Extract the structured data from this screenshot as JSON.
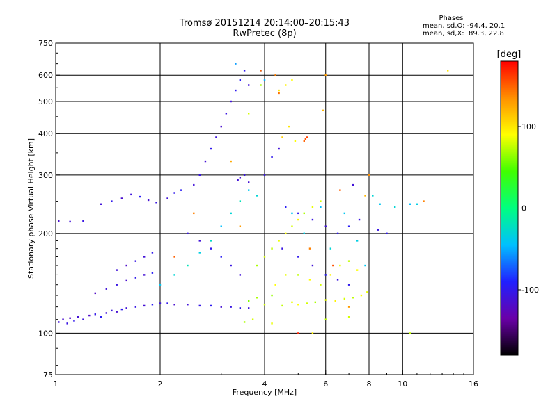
{
  "header": {
    "title": "Tromsø 20151214 20:14:00–20:15:43",
    "subtitle": "RwPretec (8p)"
  },
  "stats": {
    "heading": "Phases",
    "line_o": "mean, sd,O: -94.4, 20.1",
    "line_x": "mean, sd,X:  89.3, 22.8"
  },
  "colorbar": {
    "label": "[deg]",
    "ticks": [
      {
        "value": 100,
        "label": "100"
      },
      {
        "value": 0,
        "label": "0"
      },
      {
        "value": -100,
        "label": "-100"
      }
    ],
    "min": -180,
    "max": 180,
    "stops": [
      "#000000",
      "#6a00a8",
      "#2020ff",
      "#00c0ff",
      "#00ff80",
      "#40ff00",
      "#ffff00",
      "#ff9000",
      "#ff0000"
    ]
  },
  "chart_data": {
    "type": "scatter",
    "xlabel": "Frequency [MHz]",
    "ylabel": "Stationary phase Virtual Height [km]",
    "xscale": "log",
    "yscale": "log",
    "xlim": [
      1,
      16
    ],
    "ylim": [
      75,
      750
    ],
    "xticks": [
      {
        "value": 1,
        "label": "1",
        "grid": false
      },
      {
        "value": 2,
        "label": "2",
        "grid": true
      },
      {
        "value": 4,
        "label": "4",
        "grid": true
      },
      {
        "value": 6,
        "label": "6",
        "grid": true
      },
      {
        "value": 8,
        "label": "8",
        "grid": true
      },
      {
        "value": 10,
        "label": "10",
        "grid": true
      },
      {
        "value": 16,
        "label": "16",
        "grid": false
      }
    ],
    "yticks": [
      {
        "value": 75,
        "label": "75",
        "grid": false
      },
      {
        "value": 100,
        "label": "100",
        "grid": true
      },
      {
        "value": 200,
        "label": "200",
        "grid": true
      },
      {
        "value": 300,
        "label": "300",
        "grid": true
      },
      {
        "value": 400,
        "label": "400",
        "grid": true
      },
      {
        "value": 500,
        "label": "500",
        "grid": true
      },
      {
        "value": 600,
        "label": "600",
        "grid": true
      },
      {
        "value": 750,
        "label": "750",
        "grid": false
      }
    ],
    "series": [
      {
        "values": [
          [
            1.02,
            108,
            -110
          ],
          [
            1.05,
            110,
            -115
          ],
          [
            1.08,
            107,
            -105
          ],
          [
            1.1,
            111,
            -120
          ],
          [
            1.13,
            109,
            -100
          ],
          [
            1.16,
            112,
            -112
          ],
          [
            1.2,
            110,
            -108
          ],
          [
            1.25,
            113,
            -118
          ],
          [
            1.3,
            114,
            -102
          ],
          [
            1.35,
            112,
            -95
          ],
          [
            1.4,
            115,
            -110
          ],
          [
            1.45,
            117,
            -106
          ],
          [
            1.5,
            116,
            -114
          ],
          [
            1.55,
            118,
            -99
          ],
          [
            1.6,
            119,
            -110
          ],
          [
            1.7,
            120,
            -104
          ],
          [
            1.8,
            121,
            -112
          ],
          [
            1.9,
            122,
            -96
          ],
          [
            2.0,
            123,
            -108
          ],
          [
            2.1,
            123,
            -100
          ],
          [
            2.2,
            122,
            -115
          ],
          [
            2.4,
            122,
            -110
          ],
          [
            2.6,
            121,
            -103
          ],
          [
            2.8,
            121,
            -98
          ],
          [
            3.0,
            120,
            -112
          ],
          [
            3.2,
            120,
            -105
          ],
          [
            3.4,
            119,
            -100
          ],
          [
            3.6,
            119,
            -108
          ],
          [
            1.3,
            132,
            -120
          ],
          [
            1.4,
            136,
            -110
          ],
          [
            1.5,
            140,
            -105
          ],
          [
            1.6,
            144,
            -115
          ],
          [
            1.7,
            147,
            -100
          ],
          [
            1.8,
            150,
            -112
          ],
          [
            1.9,
            152,
            -95
          ],
          [
            1.5,
            155,
            -110
          ],
          [
            1.6,
            160,
            -118
          ],
          [
            1.7,
            165,
            -104
          ],
          [
            1.8,
            170,
            -110
          ],
          [
            1.9,
            175,
            -100
          ],
          [
            1.02,
            218,
            -115
          ],
          [
            1.1,
            217,
            -110
          ],
          [
            1.2,
            218,
            -105
          ],
          [
            1.35,
            245,
            -110
          ],
          [
            1.45,
            250,
            -100
          ],
          [
            1.55,
            255,
            -115
          ],
          [
            1.65,
            262,
            -108
          ],
          [
            1.75,
            258,
            -95
          ],
          [
            1.85,
            252,
            -112
          ],
          [
            1.95,
            248,
            -105
          ],
          [
            2.1,
            255,
            -110
          ],
          [
            2.2,
            265,
            -100
          ],
          [
            2.3,
            270,
            -95
          ],
          [
            2.5,
            280,
            -110
          ],
          [
            2.6,
            300,
            -105
          ],
          [
            2.7,
            330,
            -112
          ],
          [
            2.8,
            360,
            -100
          ],
          [
            2.9,
            390,
            -108
          ],
          [
            3.0,
            420,
            -115
          ],
          [
            3.1,
            460,
            -105
          ],
          [
            3.2,
            500,
            -110
          ],
          [
            3.3,
            540,
            -98
          ],
          [
            3.35,
            290,
            -110
          ],
          [
            3.4,
            295,
            -115
          ],
          [
            3.5,
            300,
            -105
          ],
          [
            3.6,
            285,
            -112
          ],
          [
            3.4,
            580,
            -95
          ],
          [
            3.5,
            620,
            -100
          ],
          [
            3.6,
            560,
            -110
          ],
          [
            2.4,
            200,
            -105
          ],
          [
            2.6,
            190,
            -110
          ],
          [
            2.8,
            180,
            -100
          ],
          [
            3.0,
            170,
            -95
          ],
          [
            3.2,
            160,
            -105
          ],
          [
            3.4,
            150,
            -110
          ],
          [
            4.0,
            300,
            -105
          ],
          [
            4.2,
            340,
            -100
          ],
          [
            4.4,
            360,
            -110
          ],
          [
            4.6,
            240,
            -95
          ],
          [
            5.0,
            230,
            -100
          ],
          [
            5.5,
            220,
            -105
          ],
          [
            6.0,
            210,
            -110
          ],
          [
            6.5,
            200,
            -100
          ],
          [
            7.0,
            210,
            -95
          ],
          [
            7.5,
            220,
            -105
          ],
          [
            7.2,
            280,
            -110
          ],
          [
            8.0,
            300,
            -100
          ],
          [
            8.5,
            205,
            -105
          ],
          [
            9.0,
            200,
            -100
          ],
          [
            4.5,
            180,
            -105
          ],
          [
            5.0,
            170,
            -100
          ],
          [
            5.5,
            160,
            -110
          ],
          [
            6.0,
            150,
            -95
          ],
          [
            6.5,
            145,
            -105
          ],
          [
            7.0,
            140,
            -100
          ]
        ]
      },
      {
        "values": [
          [
            2.0,
            140,
            -40
          ],
          [
            2.2,
            150,
            -30
          ],
          [
            2.4,
            160,
            -20
          ],
          [
            2.6,
            175,
            -35
          ],
          [
            2.8,
            190,
            -25
          ],
          [
            3.0,
            210,
            -45
          ],
          [
            3.2,
            230,
            -30
          ],
          [
            3.4,
            250,
            -20
          ],
          [
            3.6,
            270,
            -40
          ],
          [
            3.8,
            260,
            -30
          ],
          [
            3.9,
            620,
            -60
          ],
          [
            4.0,
            580,
            -50
          ],
          [
            3.3,
            650,
            -55
          ],
          [
            4.8,
            230,
            -40
          ],
          [
            5.2,
            200,
            -35
          ],
          [
            5.8,
            240,
            -45
          ],
          [
            6.2,
            180,
            -30
          ],
          [
            6.8,
            230,
            -40
          ],
          [
            7.4,
            190,
            -35
          ],
          [
            8.2,
            260,
            -30
          ],
          [
            8.6,
            245,
            -40
          ],
          [
            10.5,
            245,
            -45
          ],
          [
            11.0,
            245,
            -35
          ],
          [
            9.5,
            240,
            -30
          ],
          [
            7.8,
            160,
            -40
          ]
        ]
      },
      {
        "values": [
          [
            3.6,
            125,
            60
          ],
          [
            3.8,
            128,
            70
          ],
          [
            4.0,
            122,
            80
          ],
          [
            4.2,
            130,
            65
          ],
          [
            4.5,
            121,
            75
          ],
          [
            4.8,
            124,
            85
          ],
          [
            5.0,
            122,
            90
          ],
          [
            5.3,
            123,
            80
          ],
          [
            5.6,
            124,
            70
          ],
          [
            6.0,
            126,
            85
          ],
          [
            6.4,
            125,
            95
          ],
          [
            6.8,
            127,
            80
          ],
          [
            7.2,
            128,
            75
          ],
          [
            7.6,
            130,
            90
          ],
          [
            7.9,
            133,
            85
          ],
          [
            3.8,
            160,
            70
          ],
          [
            4.0,
            170,
            80
          ],
          [
            4.2,
            180,
            75
          ],
          [
            4.4,
            190,
            85
          ],
          [
            4.6,
            200,
            90
          ],
          [
            4.8,
            210,
            80
          ],
          [
            5.0,
            220,
            95
          ],
          [
            5.2,
            230,
            70
          ],
          [
            5.5,
            240,
            85
          ],
          [
            5.8,
            250,
            80
          ],
          [
            4.3,
            140,
            90
          ],
          [
            4.6,
            150,
            85
          ],
          [
            5.0,
            150,
            75
          ],
          [
            5.4,
            145,
            90
          ],
          [
            5.8,
            140,
            80
          ],
          [
            6.2,
            150,
            95
          ],
          [
            6.6,
            160,
            85
          ],
          [
            7.0,
            165,
            75
          ],
          [
            7.4,
            155,
            90
          ],
          [
            4.5,
            390,
            110
          ],
          [
            4.7,
            420,
            100
          ],
          [
            4.9,
            380,
            90
          ],
          [
            4.4,
            540,
            100
          ],
          [
            4.6,
            560,
            95
          ],
          [
            4.8,
            580,
            90
          ],
          [
            3.7,
            110,
            80
          ],
          [
            3.5,
            108,
            70
          ],
          [
            4.2,
            107,
            85
          ],
          [
            5.5,
            100,
            95
          ],
          [
            6.0,
            110,
            75
          ],
          [
            7.0,
            112,
            80
          ],
          [
            3.9,
            560,
            70
          ],
          [
            3.6,
            460,
            80
          ],
          [
            10.5,
            100,
            75
          ],
          [
            13.5,
            620,
            100
          ]
        ]
      },
      {
        "values": [
          [
            5.2,
            380,
            150
          ],
          [
            5.3,
            390,
            160
          ],
          [
            5.25,
            385,
            155
          ],
          [
            5.0,
            100,
            170
          ],
          [
            5.9,
            470,
            120
          ],
          [
            6.0,
            600,
            130
          ],
          [
            4.3,
            600,
            140
          ],
          [
            3.9,
            620,
            150
          ],
          [
            2.5,
            230,
            140
          ],
          [
            3.4,
            210,
            130
          ],
          [
            6.6,
            270,
            150
          ],
          [
            7.8,
            260,
            120
          ],
          [
            11.5,
            250,
            140
          ],
          [
            8.0,
            300,
            135
          ],
          [
            4.4,
            530,
            145
          ],
          [
            3.2,
            330,
            125
          ],
          [
            5.4,
            180,
            140
          ],
          [
            6.3,
            160,
            155
          ],
          [
            2.2,
            170,
            150
          ],
          [
            7.0,
            120,
            130
          ]
        ]
      }
    ]
  }
}
